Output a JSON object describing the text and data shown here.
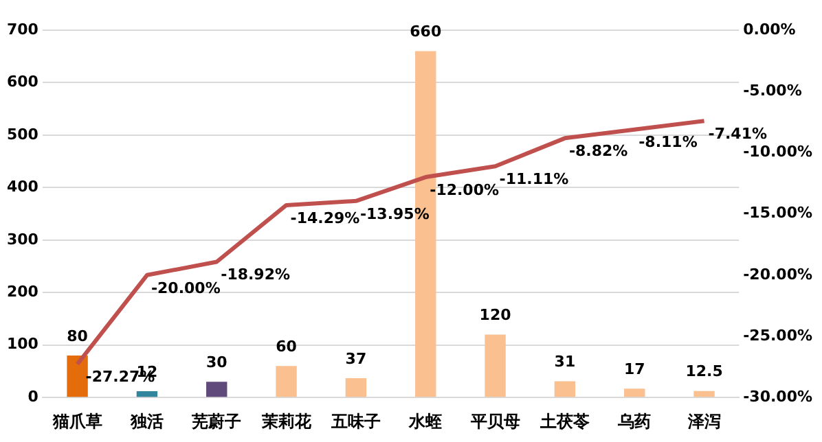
{
  "chart_data": {
    "type": "bar",
    "categories": [
      "猫爪草",
      "独活",
      "芜蔚子",
      "茉莉花",
      "五味子",
      "水蛭",
      "平贝母",
      "土茯苓",
      "乌药",
      "泽泻"
    ],
    "series": [
      {
        "values": [
          80,
          12,
          30,
          60,
          37,
          660,
          120,
          31,
          17,
          12.5
        ],
        "colors": [
          "#e46c0a",
          "#31859c",
          "#604a7b",
          "#fac090",
          "#fac090",
          "#fac090",
          "#fac090",
          "#fac090",
          "#fac090",
          "#fac090"
        ]
      },
      {
        "type": "line",
        "axis": "y2",
        "color": "#c0504d",
        "values": [
          -27.27,
          -20.0,
          -18.92,
          -14.29,
          -13.95,
          -12.0,
          -11.11,
          -8.82,
          -8.11,
          -7.41
        ],
        "value_labels": [
          "-27.27%",
          "-20.00%",
          "-18.92%",
          "-14.29%",
          "-13.95%",
          "-12.00%",
          "-11.11%",
          "-8.82%",
          "-8.11%",
          "-7.41%"
        ]
      }
    ],
    "ylim": [
      0,
      700
    ],
    "yticks": [
      0,
      100,
      200,
      300,
      400,
      500,
      600,
      700
    ],
    "y2lim": [
      -30,
      0
    ],
    "y2ticks": [
      {
        "value": -30,
        "label": "-30.00%"
      },
      {
        "value": -25,
        "label": "-25.00%"
      },
      {
        "value": -20,
        "label": "-20.00%"
      },
      {
        "value": -15,
        "label": "-15.00%"
      },
      {
        "value": -10,
        "label": "-10.00%"
      },
      {
        "value": -5,
        "label": "-5.00%"
      },
      {
        "value": 0,
        "label": "0.00%"
      }
    ],
    "grid": "y",
    "data_labels": true
  }
}
